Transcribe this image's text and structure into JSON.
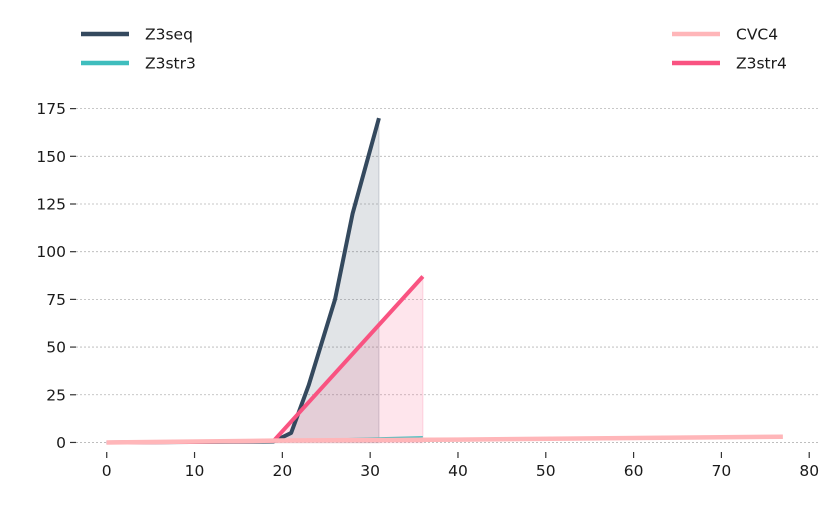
{
  "chart_data": {
    "type": "line",
    "title": "",
    "xlabel": "",
    "ylabel": "",
    "xlim": [
      -3.5,
      81
    ],
    "ylim": [
      -5,
      190
    ],
    "xticks": [
      0,
      10,
      20,
      30,
      40,
      50,
      60,
      70,
      80
    ],
    "yticks": [
      0,
      25,
      50,
      75,
      100,
      125,
      150,
      175
    ],
    "grid": "horizontal-dotted",
    "legend": "top, split left and right",
    "series": [
      {
        "name": "Z3seq",
        "color": "#34495e",
        "fill": true,
        "fill_color": "#34495e",
        "x": [
          0,
          19,
          21,
          23,
          26,
          28,
          31
        ],
        "y": [
          0,
          0.5,
          5,
          30,
          75,
          120,
          170
        ]
      },
      {
        "name": "Z3str3",
        "color": "#3fbdbd",
        "fill": false,
        "x": [
          0,
          19,
          36
        ],
        "y": [
          0,
          1,
          3
        ]
      },
      {
        "name": "CVC4",
        "color": "#ffb6b9",
        "fill": false,
        "x": [
          0,
          20,
          40,
          77
        ],
        "y": [
          0,
          1,
          1.5,
          3
        ]
      },
      {
        "name": "Z3str4",
        "color": "#f95381",
        "fill": true,
        "fill_color": "#f95381",
        "x": [
          0,
          10,
          19,
          36
        ],
        "y": [
          0,
          0.3,
          0.8,
          87
        ]
      }
    ],
    "legend_left": [
      "Z3seq",
      "Z3str3"
    ],
    "legend_right": [
      "CVC4",
      "Z3str4"
    ]
  }
}
